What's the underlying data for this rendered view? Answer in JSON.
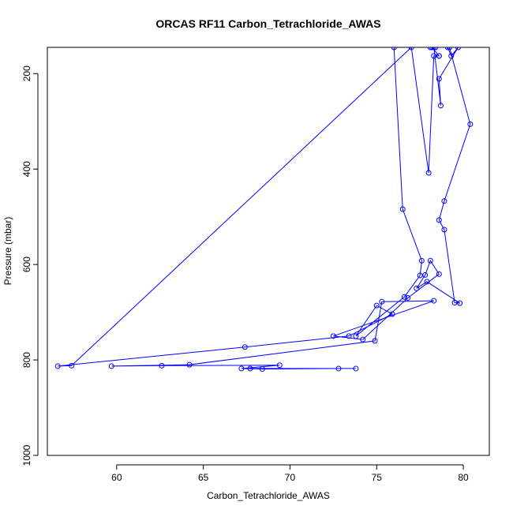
{
  "chart_data": {
    "type": "line",
    "title": "ORCAS RF11 Carbon_Tetrachloride_AWAS",
    "xlabel": "Carbon_Tetrachloride_AWAS",
    "ylabel": "Pressure (mbar)",
    "xlim": [
      56,
      81.5
    ],
    "ylim": [
      1000,
      145
    ],
    "y_reversed": true,
    "grid": false,
    "legend": "none",
    "x_ticks": [
      60,
      65,
      70,
      75,
      80
    ],
    "y_ticks": [
      200,
      400,
      600,
      800,
      1000
    ],
    "series_color": "#0000ff",
    "series": [
      {
        "x": [
          76.0,
          76.5,
          77.6,
          77.5,
          76.6,
          73.8,
          75.0,
          75.9,
          73.4,
          67.4,
          56.6,
          57.4,
          77.0,
          78.0,
          78.3,
          78.6,
          78.6,
          78.2,
          79.1,
          79.3,
          79.7,
          78.6,
          78.7,
          78.3,
          78.1,
          78.4,
          79.2,
          80.4,
          78.9,
          78.6,
          78.9,
          79.5,
          79.8,
          77.9,
          77.3,
          77.8,
          78.1,
          78.6,
          76.8,
          74.2,
          72.5,
          78.3,
          75.3,
          74.9,
          64.2,
          59.7,
          62.6,
          69.4,
          67.2,
          68.4,
          72.8,
          73.8,
          67.7
        ],
        "y": [
          145,
          484,
          592,
          623,
          668,
          750,
          686,
          704,
          750,
          773,
          813,
          812,
          145,
          408,
          163,
          163,
          163,
          145,
          145,
          163,
          145,
          211,
          267,
          145,
          145,
          145,
          145,
          306,
          467,
          507,
          527,
          680,
          681,
          636,
          650,
          622,
          592,
          620,
          670,
          757,
          750,
          676,
          678,
          760,
          810,
          813,
          812,
          811,
          818,
          819,
          818,
          818,
          818
        ]
      }
    ]
  }
}
